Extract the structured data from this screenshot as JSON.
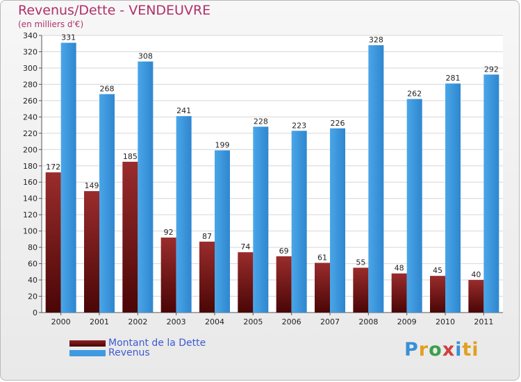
{
  "header": {
    "title": "Revenus/Dette - VENDEUVRE",
    "subtitle": "(en milliers d'€)"
  },
  "legend": {
    "debt_label": "Montant de la Dette",
    "revenue_label": "Revenus"
  },
  "logo": {
    "letters": [
      "P",
      "r",
      "o",
      "x",
      "i",
      "ti"
    ]
  },
  "colors": {
    "title": "#b0306a",
    "debt": "#7a1a1a",
    "revenue": "#3f9ae0",
    "legend_text": "#3d5ad2"
  },
  "chart_data": {
    "type": "bar",
    "title": "Revenus/Dette - VENDEUVRE",
    "subtitle": "(en milliers d'€)",
    "xlabel": "",
    "ylabel": "",
    "categories": [
      "2000",
      "2001",
      "2002",
      "2003",
      "2004",
      "2005",
      "2006",
      "2007",
      "2008",
      "2009",
      "2010",
      "2011"
    ],
    "series": [
      {
        "name": "Montant de la Dette",
        "values": [
          172,
          149,
          185,
          92,
          87,
          74,
          69,
          61,
          55,
          48,
          45,
          40
        ]
      },
      {
        "name": "Revenus",
        "values": [
          331,
          268,
          308,
          241,
          199,
          228,
          223,
          226,
          328,
          262,
          281,
          292
        ]
      }
    ],
    "ylim": [
      0,
      340
    ],
    "yticks": [
      0,
      20,
      40,
      60,
      80,
      100,
      120,
      140,
      160,
      180,
      200,
      220,
      240,
      260,
      280,
      300,
      320,
      340
    ],
    "grid": true,
    "legend_position": "bottom-left"
  }
}
